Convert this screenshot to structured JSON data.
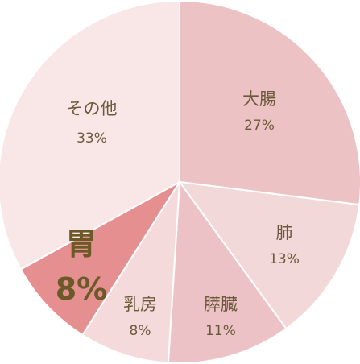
{
  "chart_data": {
    "type": "pie",
    "start_angle_deg": 0,
    "direction": "clockwise",
    "slices": [
      {
        "label": "大腸",
        "value": 27,
        "value_label": "27%",
        "color": "#ecc2c4",
        "highlight": false
      },
      {
        "label": "肺",
        "value": 13,
        "value_label": "13%",
        "color": "#f3d8d9",
        "highlight": false
      },
      {
        "label": "膵臓",
        "value": 11,
        "value_label": "11%",
        "color": "#edc2c6",
        "highlight": false
      },
      {
        "label": "乳房",
        "value": 8,
        "value_label": "8%",
        "color": "#f5dadc",
        "highlight": false
      },
      {
        "label": "胃",
        "value": 8,
        "value_label": "8%",
        "color": "#e68f90",
        "highlight": true
      },
      {
        "label": "その他",
        "value": 33,
        "value_label": "33%",
        "color": "#f9e6e7",
        "highlight": false
      }
    ]
  }
}
